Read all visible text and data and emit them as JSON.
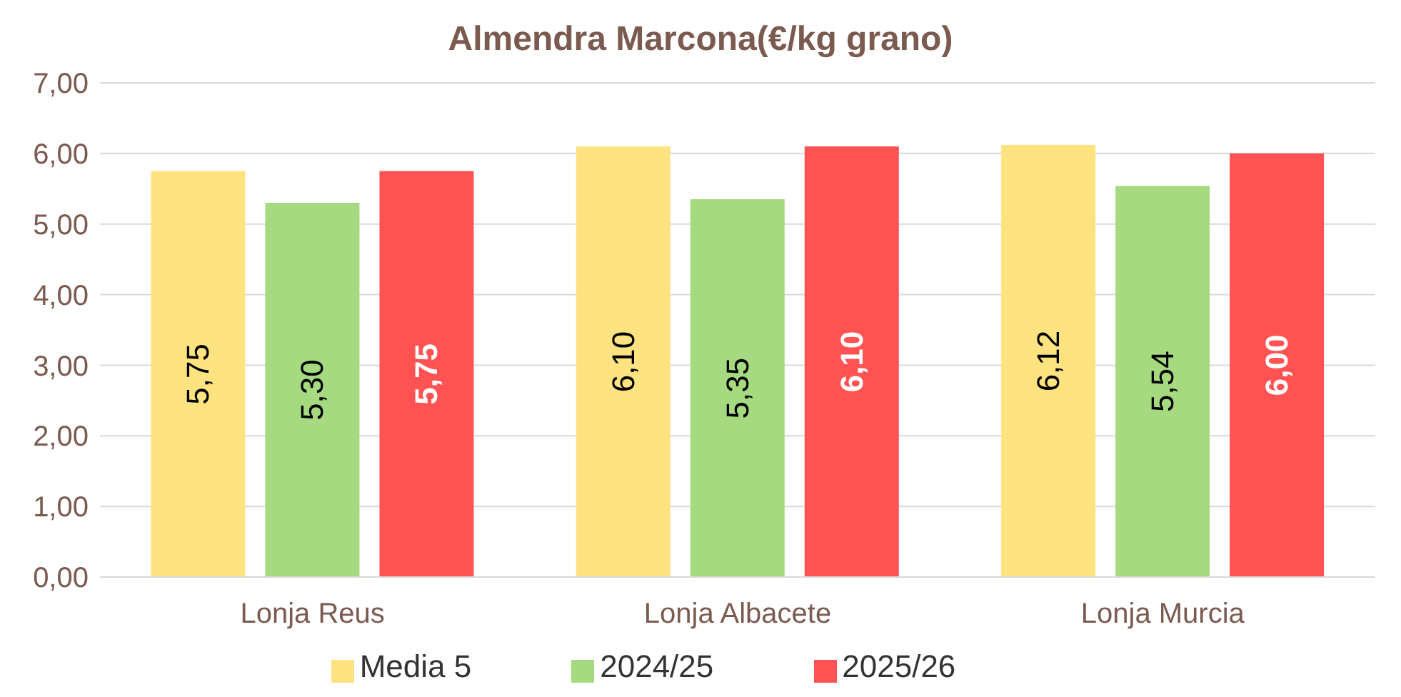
{
  "chart_data": {
    "type": "bar",
    "title": "Almendra Marcona(€/kg grano)",
    "categories": [
      "Lonja Reus",
      "Lonja Albacete",
      "Lonja Murcia"
    ],
    "series": [
      {
        "name": "Media 5",
        "color": "#ffe381",
        "values": [
          5.75,
          6.1,
          6.12
        ],
        "value_labels": [
          "5,75",
          "6,10",
          "6,12"
        ]
      },
      {
        "name": "2024/25",
        "color": "#a6da80",
        "values": [
          5.3,
          5.35,
          5.54
        ],
        "value_labels": [
          "5,30",
          "5,35",
          "5,54"
        ]
      },
      {
        "name": "2025/26",
        "color": "#ff5252",
        "values": [
          5.75,
          6.1,
          6.0
        ],
        "value_labels": [
          "5,75",
          "6,10",
          "6,00"
        ]
      }
    ],
    "ylim": [
      0,
      7
    ],
    "yticks": [
      {
        "value": 0,
        "label": "0,00"
      },
      {
        "value": 1,
        "label": "1,00"
      },
      {
        "value": 2,
        "label": "2,00"
      },
      {
        "value": 3,
        "label": "3,00"
      },
      {
        "value": 4,
        "label": "4,00"
      },
      {
        "value": 5,
        "label": "5,00"
      },
      {
        "value": 6,
        "label": "6,00"
      },
      {
        "value": 7,
        "label": "7,00"
      }
    ],
    "grid": "y",
    "legend": "bottom"
  }
}
